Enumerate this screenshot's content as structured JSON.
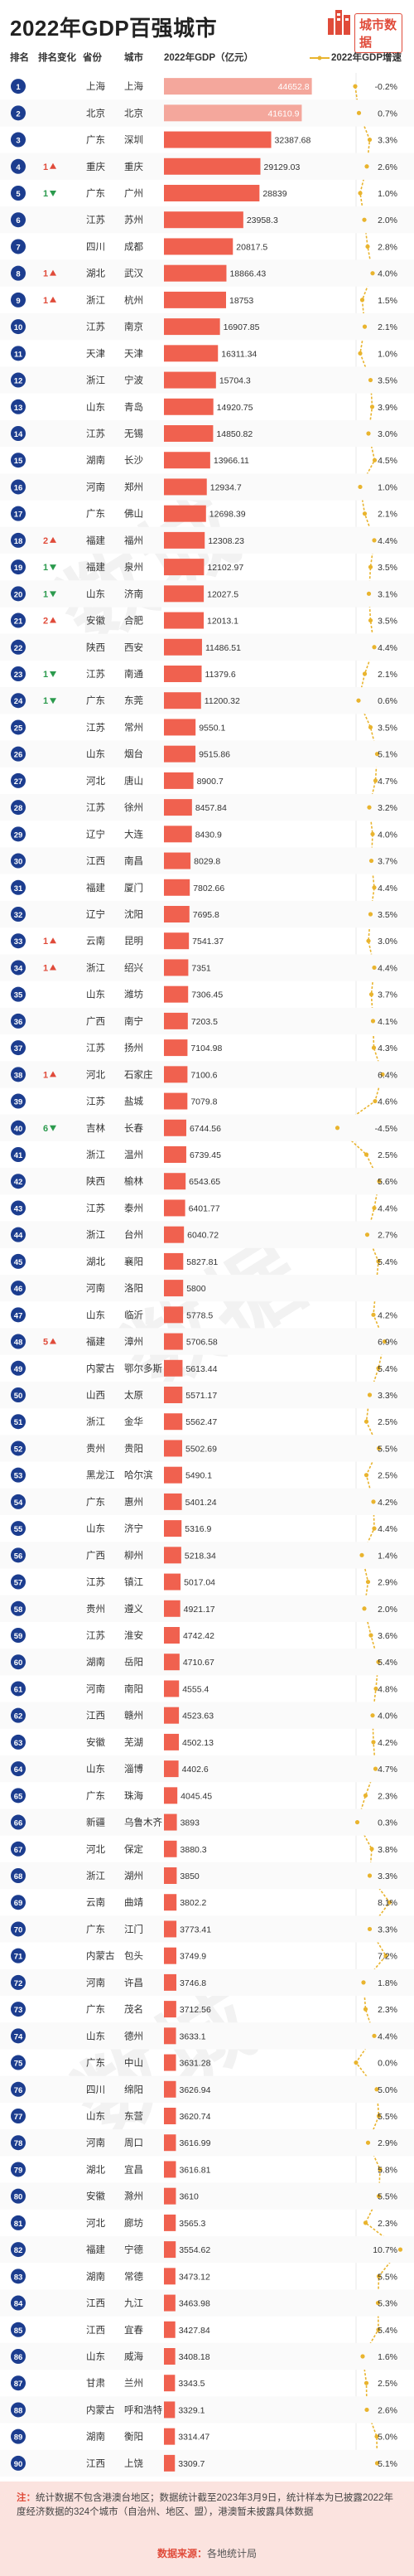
{
  "header": {
    "title": "2022年GDP百强城市",
    "brand": "城市数据",
    "col_rank": "排名",
    "col_change": "排名变化",
    "col_province": "省份",
    "col_city": "城市",
    "col_gdp": "2022年GDP（亿元）",
    "col_growth": "2022年GDP增速"
  },
  "colors": {
    "bar": "#f0614f",
    "bar_highlight": "#f4a79c",
    "rank_circle": "#1c3d8f",
    "up": "#e04b3a",
    "down": "#2b9a4d",
    "line": "#e9b42e",
    "watermark": "#f2f2f2"
  },
  "chart_data": {
    "type": "bar",
    "title": "2022年GDP百强城市",
    "xlabel": "2022年GDP（亿元）",
    "ylabel": "",
    "series": [
      {
        "name": "2022年GDP（亿元）",
        "values": "see rows[].gdp"
      },
      {
        "name": "2022年GDP增速",
        "values": "see rows[].growth"
      }
    ],
    "rows": [
      {
        "rank": 1,
        "change": "",
        "dir": "",
        "province": "上海",
        "city": "上海",
        "gdp": 44652.8,
        "growth": "-0.2%"
      },
      {
        "rank": 2,
        "change": "",
        "dir": "",
        "province": "北京",
        "city": "北京",
        "gdp": 41610.9,
        "growth": "0.7%"
      },
      {
        "rank": 3,
        "change": "",
        "dir": "",
        "province": "广东",
        "city": "深圳",
        "gdp": 32387.68,
        "growth": "3.3%"
      },
      {
        "rank": 4,
        "change": "1",
        "dir": "up",
        "province": "重庆",
        "city": "重庆",
        "gdp": 29129.03,
        "growth": "2.6%"
      },
      {
        "rank": 5,
        "change": "1",
        "dir": "down",
        "province": "广东",
        "city": "广州",
        "gdp": 28839,
        "growth": "1.0%"
      },
      {
        "rank": 6,
        "change": "",
        "dir": "",
        "province": "江苏",
        "city": "苏州",
        "gdp": 23958.3,
        "growth": "2.0%"
      },
      {
        "rank": 7,
        "change": "",
        "dir": "",
        "province": "四川",
        "city": "成都",
        "gdp": 20817.5,
        "growth": "2.8%"
      },
      {
        "rank": 8,
        "change": "1",
        "dir": "up",
        "province": "湖北",
        "city": "武汉",
        "gdp": 18866.43,
        "growth": "4.0%"
      },
      {
        "rank": 9,
        "change": "1",
        "dir": "up",
        "province": "浙江",
        "city": "杭州",
        "gdp": 18753,
        "growth": "1.5%"
      },
      {
        "rank": 10,
        "change": "",
        "dir": "",
        "province": "江苏",
        "city": "南京",
        "gdp": 16907.85,
        "growth": "2.1%"
      },
      {
        "rank": 11,
        "change": "",
        "dir": "",
        "province": "天津",
        "city": "天津",
        "gdp": 16311.34,
        "growth": "1.0%"
      },
      {
        "rank": 12,
        "change": "",
        "dir": "",
        "province": "浙江",
        "city": "宁波",
        "gdp": 15704.3,
        "growth": "3.5%"
      },
      {
        "rank": 13,
        "change": "",
        "dir": "",
        "province": "山东",
        "city": "青岛",
        "gdp": 14920.75,
        "growth": "3.9%"
      },
      {
        "rank": 14,
        "change": "",
        "dir": "",
        "province": "江苏",
        "city": "无锡",
        "gdp": 14850.82,
        "growth": "3.0%"
      },
      {
        "rank": 15,
        "change": "",
        "dir": "",
        "province": "湖南",
        "city": "长沙",
        "gdp": 13966.11,
        "growth": "4.5%"
      },
      {
        "rank": 16,
        "change": "",
        "dir": "",
        "province": "河南",
        "city": "郑州",
        "gdp": 12934.7,
        "growth": "1.0%"
      },
      {
        "rank": 17,
        "change": "",
        "dir": "",
        "province": "广东",
        "city": "佛山",
        "gdp": 12698.39,
        "growth": "2.1%"
      },
      {
        "rank": 18,
        "change": "2",
        "dir": "up",
        "province": "福建",
        "city": "福州",
        "gdp": 12308.23,
        "growth": "4.4%"
      },
      {
        "rank": 19,
        "change": "1",
        "dir": "down",
        "province": "福建",
        "city": "泉州",
        "gdp": 12102.97,
        "growth": "3.5%"
      },
      {
        "rank": 20,
        "change": "1",
        "dir": "down",
        "province": "山东",
        "city": "济南",
        "gdp": 12027.5,
        "growth": "3.1%"
      },
      {
        "rank": 21,
        "change": "2",
        "dir": "up",
        "province": "安徽",
        "city": "合肥",
        "gdp": 12013.1,
        "growth": "3.5%"
      },
      {
        "rank": 22,
        "change": "",
        "dir": "",
        "province": "陕西",
        "city": "西安",
        "gdp": 11486.51,
        "growth": "4.4%"
      },
      {
        "rank": 23,
        "change": "1",
        "dir": "down",
        "province": "江苏",
        "city": "南通",
        "gdp": 11379.6,
        "growth": "2.1%"
      },
      {
        "rank": 24,
        "change": "1",
        "dir": "down",
        "province": "广东",
        "city": "东莞",
        "gdp": 11200.32,
        "growth": "0.6%"
      },
      {
        "rank": 25,
        "change": "",
        "dir": "",
        "province": "江苏",
        "city": "常州",
        "gdp": 9550.1,
        "growth": "3.5%"
      },
      {
        "rank": 26,
        "change": "",
        "dir": "",
        "province": "山东",
        "city": "烟台",
        "gdp": 9515.86,
        "growth": "5.1%"
      },
      {
        "rank": 27,
        "change": "",
        "dir": "",
        "province": "河北",
        "city": "唐山",
        "gdp": 8900.7,
        "growth": "4.7%"
      },
      {
        "rank": 28,
        "change": "",
        "dir": "",
        "province": "江苏",
        "city": "徐州",
        "gdp": 8457.84,
        "growth": "3.2%"
      },
      {
        "rank": 29,
        "change": "",
        "dir": "",
        "province": "辽宁",
        "city": "大连",
        "gdp": 8430.9,
        "growth": "4.0%"
      },
      {
        "rank": 30,
        "change": "",
        "dir": "",
        "province": "江西",
        "city": "南昌",
        "gdp": 8029.8,
        "growth": "3.7%"
      },
      {
        "rank": 31,
        "change": "",
        "dir": "",
        "province": "福建",
        "city": "厦门",
        "gdp": 7802.66,
        "growth": "4.4%"
      },
      {
        "rank": 32,
        "change": "",
        "dir": "",
        "province": "辽宁",
        "city": "沈阳",
        "gdp": 7695.8,
        "growth": "3.5%"
      },
      {
        "rank": 33,
        "change": "1",
        "dir": "up",
        "province": "云南",
        "city": "昆明",
        "gdp": 7541.37,
        "growth": "3.0%"
      },
      {
        "rank": 34,
        "change": "1",
        "dir": "up",
        "province": "浙江",
        "city": "绍兴",
        "gdp": 7351,
        "growth": "4.4%"
      },
      {
        "rank": 35,
        "change": "",
        "dir": "",
        "province": "山东",
        "city": "潍坊",
        "gdp": 7306.45,
        "growth": "3.7%"
      },
      {
        "rank": 36,
        "change": "",
        "dir": "",
        "province": "广西",
        "city": "南宁",
        "gdp": 7203.5,
        "growth": "4.1%"
      },
      {
        "rank": 37,
        "change": "",
        "dir": "",
        "province": "江苏",
        "city": "扬州",
        "gdp": 7104.98,
        "growth": "4.3%"
      },
      {
        "rank": 38,
        "change": "1",
        "dir": "up",
        "province": "河北",
        "city": "石家庄",
        "gdp": 7100.6,
        "growth": "6.4%"
      },
      {
        "rank": 39,
        "change": "",
        "dir": "",
        "province": "江苏",
        "city": "盐城",
        "gdp": 7079.8,
        "growth": "4.6%"
      },
      {
        "rank": 40,
        "change": "6",
        "dir": "down",
        "province": "吉林",
        "city": "长春",
        "gdp": 6744.56,
        "growth": "-4.5%"
      },
      {
        "rank": 41,
        "change": "",
        "dir": "",
        "province": "浙江",
        "city": "温州",
        "gdp": 6739.45,
        "growth": "2.5%"
      },
      {
        "rank": 42,
        "change": "",
        "dir": "",
        "province": "陕西",
        "city": "榆林",
        "gdp": 6543.65,
        "growth": "5.6%"
      },
      {
        "rank": 43,
        "change": "",
        "dir": "",
        "province": "江苏",
        "city": "泰州",
        "gdp": 6401.77,
        "growth": "4.4%"
      },
      {
        "rank": 44,
        "change": "",
        "dir": "",
        "province": "浙江",
        "city": "台州",
        "gdp": 6040.72,
        "growth": "2.7%"
      },
      {
        "rank": 45,
        "change": "",
        "dir": "",
        "province": "湖北",
        "city": "襄阳",
        "gdp": 5827.81,
        "growth": "5.4%"
      },
      {
        "rank": 46,
        "change": "",
        "dir": "",
        "province": "河南",
        "city": "洛阳",
        "gdp": 5800,
        "growth": ""
      },
      {
        "rank": 47,
        "change": "",
        "dir": "",
        "province": "山东",
        "city": "临沂",
        "gdp": 5778.5,
        "growth": "4.2%"
      },
      {
        "rank": 48,
        "change": "5",
        "dir": "up",
        "province": "福建",
        "city": "漳州",
        "gdp": 5706.58,
        "growth": "6.9%"
      },
      {
        "rank": 49,
        "change": "",
        "dir": "",
        "province": "内蒙古",
        "city": "鄂尔多斯",
        "gdp": 5613.44,
        "growth": "5.4%"
      },
      {
        "rank": 50,
        "change": "",
        "dir": "",
        "province": "山西",
        "city": "太原",
        "gdp": 5571.17,
        "growth": "3.3%"
      },
      {
        "rank": 51,
        "change": "",
        "dir": "",
        "province": "浙江",
        "city": "金华",
        "gdp": 5562.47,
        "growth": "2.5%"
      },
      {
        "rank": 52,
        "change": "",
        "dir": "",
        "province": "贵州",
        "city": "贵阳",
        "gdp": 5502.69,
        "growth": "5.5%"
      },
      {
        "rank": 53,
        "change": "",
        "dir": "",
        "province": "黑龙江",
        "city": "哈尔滨",
        "gdp": 5490.1,
        "growth": "2.5%"
      },
      {
        "rank": 54,
        "change": "",
        "dir": "",
        "province": "广东",
        "city": "惠州",
        "gdp": 5401.24,
        "growth": "4.2%"
      },
      {
        "rank": 55,
        "change": "",
        "dir": "",
        "province": "山东",
        "city": "济宁",
        "gdp": 5316.9,
        "growth": "4.4%"
      },
      {
        "rank": 56,
        "change": "",
        "dir": "",
        "province": "广西",
        "city": "柳州",
        "gdp": 5218.34,
        "growth": "1.4%"
      },
      {
        "rank": 57,
        "change": "",
        "dir": "",
        "province": "江苏",
        "city": "镇江",
        "gdp": 5017.04,
        "growth": "2.9%"
      },
      {
        "rank": 58,
        "change": "",
        "dir": "",
        "province": "贵州",
        "city": "遵义",
        "gdp": 4921.17,
        "growth": "2.0%"
      },
      {
        "rank": 59,
        "change": "",
        "dir": "",
        "province": "江苏",
        "city": "淮安",
        "gdp": 4742.42,
        "growth": "3.6%"
      },
      {
        "rank": 60,
        "change": "",
        "dir": "",
        "province": "湖南",
        "city": "岳阳",
        "gdp": 4710.67,
        "growth": "5.4%"
      },
      {
        "rank": 61,
        "change": "",
        "dir": "",
        "province": "河南",
        "city": "南阳",
        "gdp": 4555.4,
        "growth": "4.8%"
      },
      {
        "rank": 62,
        "change": "",
        "dir": "",
        "province": "江西",
        "city": "赣州",
        "gdp": 4523.63,
        "growth": "4.0%"
      },
      {
        "rank": 63,
        "change": "",
        "dir": "",
        "province": "安徽",
        "city": "芜湖",
        "gdp": 4502.13,
        "growth": "4.2%"
      },
      {
        "rank": 64,
        "change": "",
        "dir": "",
        "province": "山东",
        "city": "淄博",
        "gdp": 4402.6,
        "growth": "4.7%"
      },
      {
        "rank": 65,
        "change": "",
        "dir": "",
        "province": "广东",
        "city": "珠海",
        "gdp": 4045.45,
        "growth": "2.3%"
      },
      {
        "rank": 66,
        "change": "",
        "dir": "",
        "province": "新疆",
        "city": "乌鲁木齐",
        "gdp": 3893,
        "growth": "0.3%"
      },
      {
        "rank": 67,
        "change": "",
        "dir": "",
        "province": "河北",
        "city": "保定",
        "gdp": 3880.3,
        "growth": "3.8%"
      },
      {
        "rank": 68,
        "change": "",
        "dir": "",
        "province": "浙江",
        "city": "湖州",
        "gdp": 3850,
        "growth": "3.3%"
      },
      {
        "rank": 69,
        "change": "",
        "dir": "",
        "province": "云南",
        "city": "曲靖",
        "gdp": 3802.2,
        "growth": "8.1%"
      },
      {
        "rank": 70,
        "change": "",
        "dir": "",
        "province": "广东",
        "city": "江门",
        "gdp": 3773.41,
        "growth": "3.3%"
      },
      {
        "rank": 71,
        "change": "",
        "dir": "",
        "province": "内蒙古",
        "city": "包头",
        "gdp": 3749.9,
        "growth": "7.2%"
      },
      {
        "rank": 72,
        "change": "",
        "dir": "",
        "province": "河南",
        "city": "许昌",
        "gdp": 3746.8,
        "growth": "1.8%"
      },
      {
        "rank": 73,
        "change": "",
        "dir": "",
        "province": "广东",
        "city": "茂名",
        "gdp": 3712.56,
        "growth": "2.3%"
      },
      {
        "rank": 74,
        "change": "",
        "dir": "",
        "province": "山东",
        "city": "德州",
        "gdp": 3633.1,
        "growth": "4.4%"
      },
      {
        "rank": 75,
        "change": "",
        "dir": "",
        "province": "广东",
        "city": "中山",
        "gdp": 3631.28,
        "growth": "0.0%"
      },
      {
        "rank": 76,
        "change": "",
        "dir": "",
        "province": "四川",
        "city": "绵阳",
        "gdp": 3626.94,
        "growth": "5.0%"
      },
      {
        "rank": 77,
        "change": "",
        "dir": "",
        "province": "山东",
        "city": "东营",
        "gdp": 3620.74,
        "growth": "5.5%"
      },
      {
        "rank": 78,
        "change": "",
        "dir": "",
        "province": "河南",
        "city": "周口",
        "gdp": 3616.99,
        "growth": "2.9%"
      },
      {
        "rank": 79,
        "change": "",
        "dir": "",
        "province": "湖北",
        "city": "宜昌",
        "gdp": 3616.81,
        "growth": "5.8%"
      },
      {
        "rank": 80,
        "change": "",
        "dir": "",
        "province": "安徽",
        "city": "滁州",
        "gdp": 3610,
        "growth": "5.5%"
      },
      {
        "rank": 81,
        "change": "",
        "dir": "",
        "province": "河北",
        "city": "廊坊",
        "gdp": 3565.3,
        "growth": "2.3%"
      },
      {
        "rank": 82,
        "change": "",
        "dir": "",
        "province": "福建",
        "city": "宁德",
        "gdp": 3554.62,
        "growth": "10.7%"
      },
      {
        "rank": 83,
        "change": "",
        "dir": "",
        "province": "湖南",
        "city": "常德",
        "gdp": 3473.12,
        "growth": "5.5%"
      },
      {
        "rank": 84,
        "change": "",
        "dir": "",
        "province": "江西",
        "city": "九江",
        "gdp": 3463.98,
        "growth": "5.3%"
      },
      {
        "rank": 85,
        "change": "",
        "dir": "",
        "province": "江西",
        "city": "宜春",
        "gdp": 3427.84,
        "growth": "5.4%"
      },
      {
        "rank": 86,
        "change": "",
        "dir": "",
        "province": "山东",
        "city": "威海",
        "gdp": 3408.18,
        "growth": "1.6%"
      },
      {
        "rank": 87,
        "change": "",
        "dir": "",
        "province": "甘肃",
        "city": "兰州",
        "gdp": 3343.5,
        "growth": "2.5%"
      },
      {
        "rank": 88,
        "change": "",
        "dir": "",
        "province": "内蒙古",
        "city": "呼和浩特",
        "gdp": 3329.1,
        "growth": "2.6%"
      },
      {
        "rank": 89,
        "change": "",
        "dir": "",
        "province": "湖南",
        "city": "衡阳",
        "gdp": 3314.47,
        "growth": "5.0%"
      },
      {
        "rank": 90,
        "change": "",
        "dir": "",
        "province": "江西",
        "city": "上饶",
        "gdp": 3309.7,
        "growth": "5.1%"
      }
    ]
  },
  "footer": {
    "note_label": "注：",
    "note_text": "统计数据不包含港澳台地区；数据统计截至2023年3月9日，统计样本为已披露2022年度经济数据的324个城市（自治州、地区、盟），港澳暂未披露具体数据",
    "source_label": "数据来源：",
    "source_text": "各地统计局"
  }
}
